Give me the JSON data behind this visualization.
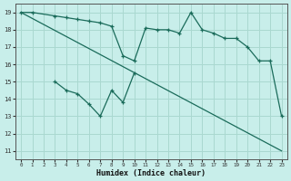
{
  "xlabel": "Humidex (Indice chaleur)",
  "bg_color": "#c8eeea",
  "grid_color": "#aad8d0",
  "line_color": "#1a6b5a",
  "xlim": [
    -0.5,
    23.5
  ],
  "ylim": [
    10.5,
    19.5
  ],
  "yticks": [
    11,
    12,
    13,
    14,
    15,
    16,
    17,
    18,
    19
  ],
  "xticks": [
    0,
    1,
    2,
    3,
    4,
    5,
    6,
    7,
    8,
    9,
    10,
    11,
    12,
    13,
    14,
    15,
    16,
    17,
    18,
    19,
    20,
    21,
    22,
    23
  ],
  "line1_x": [
    0,
    1,
    3,
    4,
    5,
    6,
    7,
    8,
    9,
    10,
    11,
    12,
    13,
    14,
    15,
    16,
    17,
    18,
    19,
    20,
    21,
    22,
    23
  ],
  "line1_y": [
    19,
    19,
    18.8,
    18.7,
    18.6,
    18.5,
    18.4,
    18.2,
    16.5,
    16.2,
    18.1,
    18.0,
    18.0,
    17.8,
    19.0,
    18.0,
    17.8,
    17.5,
    17.5,
    17.0,
    16.2,
    16.2,
    13.0
  ],
  "line2_x": [
    3,
    4,
    5,
    6,
    7,
    8,
    9,
    10
  ],
  "line2_y": [
    15.0,
    14.5,
    14.3,
    13.7,
    13.0,
    14.5,
    13.8,
    15.5
  ],
  "line3_x": [
    0,
    23
  ],
  "line3_y": [
    19,
    11.0
  ]
}
